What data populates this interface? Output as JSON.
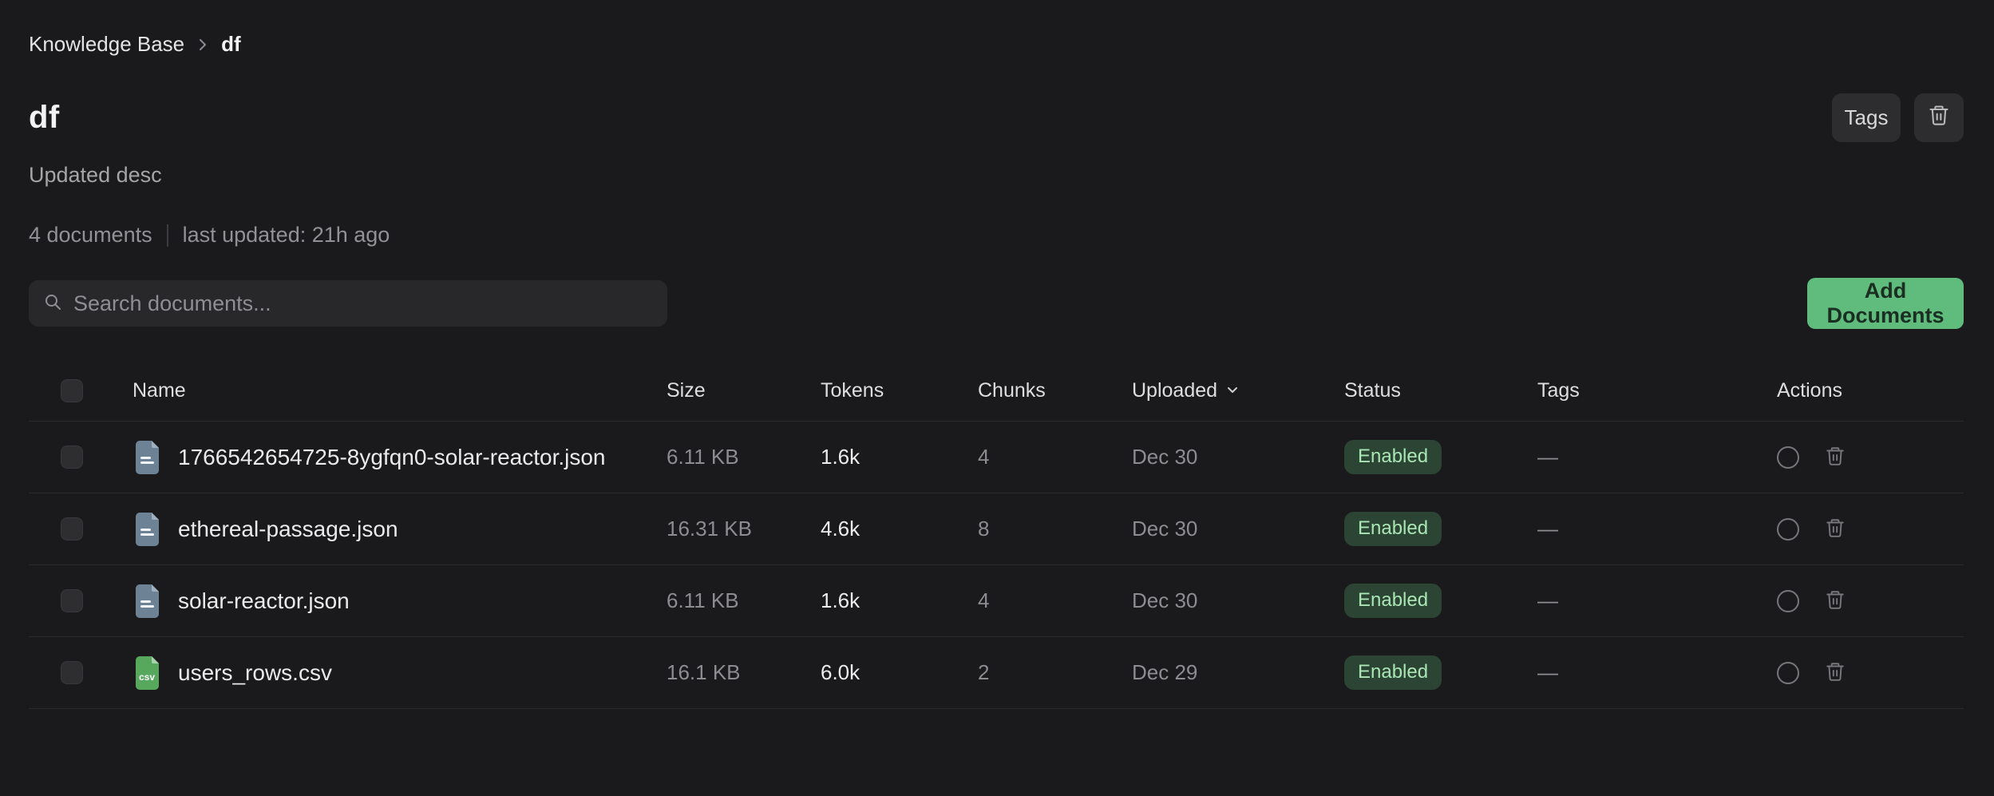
{
  "breadcrumb": {
    "root": "Knowledge Base",
    "current": "df"
  },
  "header": {
    "title": "df",
    "description": "Updated desc",
    "tags_button_label": "Tags"
  },
  "meta": {
    "documents_count": "4 documents",
    "last_updated": "last updated: 21h ago"
  },
  "toolbar": {
    "search_placeholder": "Search documents...",
    "add_button_label": "Add Documents"
  },
  "table": {
    "columns": {
      "name": "Name",
      "size": "Size",
      "tokens": "Tokens",
      "chunks": "Chunks",
      "uploaded": "Uploaded",
      "status": "Status",
      "tags": "Tags",
      "actions": "Actions"
    },
    "csv_icon_label": "csv",
    "rows": [
      {
        "name": "1766542654725-8ygfqn0-solar-reactor.json",
        "file_type": "json",
        "size": "6.11 KB",
        "tokens": "1.6k",
        "chunks": "4",
        "uploaded": "Dec 30",
        "status": "Enabled",
        "tags": "—"
      },
      {
        "name": "ethereal-passage.json",
        "file_type": "json",
        "size": "16.31 KB",
        "tokens": "4.6k",
        "chunks": "8",
        "uploaded": "Dec 30",
        "status": "Enabled",
        "tags": "—"
      },
      {
        "name": "solar-reactor.json",
        "file_type": "json",
        "size": "6.11 KB",
        "tokens": "1.6k",
        "chunks": "4",
        "uploaded": "Dec 30",
        "status": "Enabled",
        "tags": "—"
      },
      {
        "name": "users_rows.csv",
        "file_type": "csv",
        "size": "16.1 KB",
        "tokens": "6.0k",
        "chunks": "2",
        "uploaded": "Dec 29",
        "status": "Enabled",
        "tags": "—"
      }
    ]
  },
  "colors": {
    "bg": "#1a1a1c",
    "green_button": "#5fbc7c",
    "green_button_text": "#1b2e22",
    "badge_bg": "#2c4434",
    "badge_text": "#a9e6b4",
    "json_icon": "#6e8296",
    "csv_icon": "#57a75d",
    "input_bg": "#28282b",
    "btn_bg": "#2d2d30",
    "divider": "#2a2a2d",
    "text_white": "#ededef",
    "text_gray": "#8e8e92"
  }
}
